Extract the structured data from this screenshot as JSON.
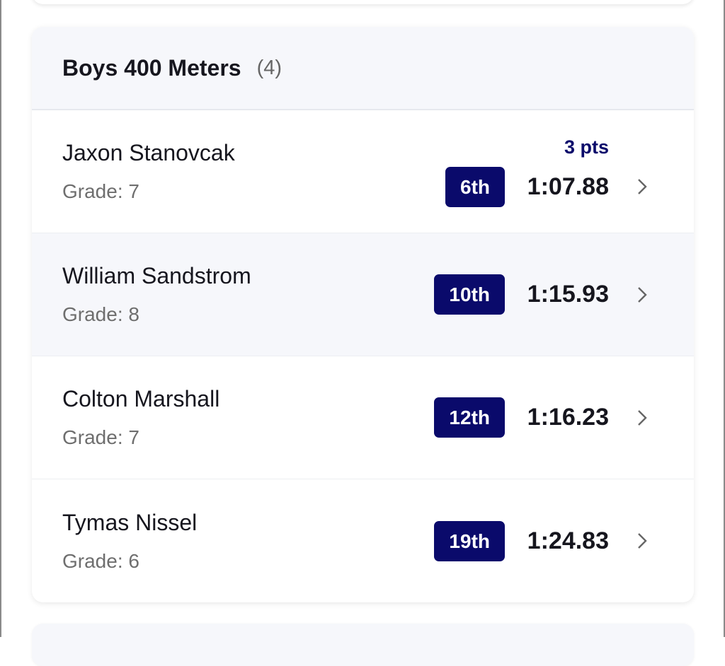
{
  "event": {
    "title": "Boys 400 Meters",
    "count": "(4)"
  },
  "colors": {
    "badge": "#0a0a6b",
    "points": "#0b0b6b",
    "header_bg": "#f6f7fb"
  },
  "results": [
    {
      "name": "Jaxon Stanovcak",
      "grade": "Grade: 7",
      "points": "3 pts",
      "place": "6th",
      "time": "1:07.88"
    },
    {
      "name": "William Sandstrom",
      "grade": "Grade: 8",
      "place": "10th",
      "time": "1:15.93"
    },
    {
      "name": "Colton Marshall",
      "grade": "Grade: 7",
      "place": "12th",
      "time": "1:16.23"
    },
    {
      "name": "Tymas Nissel",
      "grade": "Grade: 6",
      "place": "19th",
      "time": "1:24.83"
    }
  ]
}
